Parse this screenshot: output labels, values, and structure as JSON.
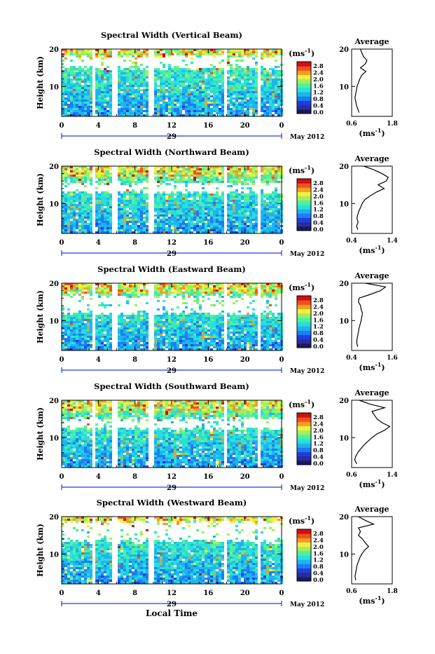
{
  "figure": {
    "xlabel": "Local Time",
    "colorbar_unit": "(ms",
    "colorbar_unit_exp": "-1",
    "colorbar_unit_close": ")",
    "ylabel": "Height (km)",
    "date_day": "29",
    "date_month_year": "May 2012",
    "avg_title": "Average",
    "avg_xlabel": "(ms",
    "avg_xlabel_exp": "-1",
    "avg_xlabel_close": ")",
    "colors": {
      "background": "#ffffff",
      "colormap": [
        "#1a1a5e",
        "#2d2d9a",
        "#1e3ee0",
        "#1e7df0",
        "#1fb4f0",
        "#28e0d8",
        "#50f0a0",
        "#a0f060",
        "#f0f040",
        "#f0a020",
        "#f05020",
        "#d01010"
      ]
    }
  },
  "chart_data": [
    {
      "type": "heatmap",
      "title": "Spectral Width (Vertical Beam)",
      "xticks": [
        "0",
        "4",
        "8",
        "12",
        "16",
        "20",
        "0"
      ],
      "yticks": [
        "20",
        "10"
      ],
      "xlim": [
        0,
        24
      ],
      "ylim": [
        2,
        20
      ],
      "colorbar_ticks": [
        "2.8",
        "2.4",
        "2.0",
        "1.6",
        "1.2",
        "0.8",
        "0.4",
        "0.0"
      ],
      "gaps_hours": [
        [
          3.2,
          3.6
        ],
        [
          5.2,
          5.9
        ],
        [
          9.2,
          9.8
        ],
        [
          17.6,
          17.9
        ],
        [
          21.3,
          21.7
        ]
      ],
      "void_band_km": [
        15.5,
        17.5
      ],
      "average_profile": {
        "xticks": [
          "0.6",
          "1.8"
        ],
        "xlim": [
          0.6,
          1.8
        ],
        "yticks": [
          "20",
          "10"
        ],
        "ylim": [
          2,
          20
        ],
        "height_km": [
          3,
          4,
          5,
          6,
          7,
          8,
          9,
          10,
          11,
          12,
          13,
          14,
          15,
          16,
          17,
          18,
          19,
          20
        ],
        "width": [
          0.82,
          0.78,
          0.74,
          0.72,
          0.7,
          0.72,
          0.74,
          0.76,
          0.8,
          0.84,
          0.9,
          1.02,
          0.86,
          1.0,
          1.05,
          0.95,
          0.9,
          0.86
        ]
      }
    },
    {
      "type": "heatmap",
      "title": "Spectral Width (Northward Beam)",
      "xticks": [
        "0",
        "4",
        "8",
        "12",
        "16",
        "20",
        "0"
      ],
      "yticks": [
        "20",
        "10"
      ],
      "xlim": [
        0,
        24
      ],
      "ylim": [
        2,
        20
      ],
      "colorbar_ticks": [
        "2.8",
        "2.4",
        "2.0",
        "1.6",
        "1.2",
        "0.8",
        "0.4",
        "0.0"
      ],
      "gaps_hours": [
        [
          3.2,
          3.6
        ],
        [
          5.2,
          5.9
        ],
        [
          9.2,
          9.8
        ],
        [
          17.6,
          17.9
        ],
        [
          21.3,
          21.7
        ]
      ],
      "void_band_km": [
        13.5,
        15.0
      ],
      "average_profile": {
        "xticks": [
          "0.4",
          "1.4"
        ],
        "xlim": [
          0.4,
          1.4
        ],
        "yticks": [
          "20",
          "10"
        ],
        "ylim": [
          2,
          20
        ],
        "height_km": [
          3,
          4,
          5,
          6,
          7,
          8,
          9,
          10,
          11,
          12,
          13,
          14,
          15,
          16,
          17,
          18,
          19,
          20
        ],
        "width": [
          0.55,
          0.52,
          0.56,
          0.53,
          0.55,
          0.58,
          0.62,
          0.66,
          0.72,
          0.85,
          1.0,
          1.2,
          1.05,
          1.25,
          1.3,
          1.15,
          0.95,
          0.7
        ]
      }
    },
    {
      "type": "heatmap",
      "title": "Spectral Width (Eastward Beam)",
      "xticks": [
        "0",
        "4",
        "8",
        "12",
        "16",
        "20",
        "0"
      ],
      "yticks": [
        "20",
        "10"
      ],
      "xlim": [
        0,
        24
      ],
      "ylim": [
        2,
        20
      ],
      "colorbar_ticks": [
        "2.8",
        "2.4",
        "2.0",
        "1.6",
        "1.2",
        "0.8",
        "0.4",
        "0.0"
      ],
      "gaps_hours": [
        [
          3.2,
          3.6
        ],
        [
          5.2,
          5.9
        ],
        [
          9.2,
          9.8
        ],
        [
          17.6,
          17.9
        ],
        [
          21.3,
          21.7
        ]
      ],
      "void_band_km": [
        12.5,
        16.0
      ],
      "average_profile": {
        "xticks": [
          "0.4",
          "1.6"
        ],
        "xlim": [
          0.4,
          1.6
        ],
        "yticks": [
          "20",
          "10"
        ],
        "ylim": [
          2,
          20
        ],
        "height_km": [
          3,
          4,
          5,
          6,
          7,
          8,
          9,
          10,
          11,
          12,
          13,
          14,
          15,
          16,
          17,
          18,
          19,
          20
        ],
        "width": [
          0.58,
          0.55,
          0.56,
          0.58,
          0.6,
          0.62,
          0.65,
          0.68,
          0.7,
          0.72,
          0.68,
          0.66,
          0.6,
          0.62,
          0.95,
          1.25,
          1.4,
          0.8
        ]
      }
    },
    {
      "type": "heatmap",
      "title": "Spectral Width (Southward Beam)",
      "xticks": [
        "0",
        "4",
        "8",
        "12",
        "16",
        "20",
        "0"
      ],
      "yticks": [
        "20",
        "10"
      ],
      "xlim": [
        0,
        24
      ],
      "ylim": [
        2,
        20
      ],
      "colorbar_ticks": [
        "2.8",
        "2.4",
        "2.0",
        "1.6",
        "1.2",
        "0.8",
        "0.4",
        "0.0"
      ],
      "gaps_hours": [
        [
          3.2,
          3.6
        ],
        [
          5.2,
          5.9
        ],
        [
          9.2,
          9.8
        ],
        [
          17.6,
          17.9
        ],
        [
          21.3,
          21.7
        ]
      ],
      "void_band_km": [
        13.0,
        14.5
      ],
      "average_profile": {
        "xticks": [
          "0.6",
          "1.4"
        ],
        "xlim": [
          0.6,
          1.4
        ],
        "yticks": [
          "20",
          "10"
        ],
        "ylim": [
          2,
          20
        ],
        "height_km": [
          3,
          4,
          5,
          6,
          7,
          8,
          9,
          10,
          11,
          12,
          13,
          14,
          15,
          16,
          17,
          18,
          19,
          20
        ],
        "width": [
          0.7,
          0.66,
          0.68,
          0.72,
          0.78,
          0.84,
          0.92,
          1.0,
          1.1,
          1.25,
          1.35,
          1.2,
          1.1,
          1.05,
          1.0,
          1.25,
          0.95,
          0.75
        ]
      }
    },
    {
      "type": "heatmap",
      "title": "Spectral Width (Westward Beam)",
      "xticks": [
        "0",
        "4",
        "8",
        "12",
        "16",
        "20",
        "0"
      ],
      "yticks": [
        "20",
        "10"
      ],
      "xlim": [
        0,
        24
      ],
      "ylim": [
        2,
        20
      ],
      "colorbar_ticks": [
        "2.8",
        "2.4",
        "2.0",
        "1.6",
        "1.2",
        "0.8",
        "0.4",
        "0.0"
      ],
      "gaps_hours": [
        [
          3.2,
          3.6
        ],
        [
          5.2,
          5.9
        ],
        [
          9.2,
          9.8
        ],
        [
          17.6,
          17.9
        ],
        [
          21.3,
          21.7
        ]
      ],
      "void_band_km": [
        14.0,
        18.0
      ],
      "average_profile": {
        "xticks": [
          "0.6",
          "1.8"
        ],
        "xlim": [
          0.6,
          1.8
        ],
        "yticks": [
          "20",
          "10"
        ],
        "ylim": [
          2,
          20
        ],
        "height_km": [
          3,
          4,
          5,
          6,
          7,
          8,
          9,
          10,
          11,
          12,
          13,
          14,
          15,
          16,
          17,
          18,
          19,
          20
        ],
        "width": [
          0.72,
          0.7,
          0.72,
          0.74,
          0.76,
          0.8,
          0.84,
          0.9,
          0.98,
          1.1,
          1.0,
          0.92,
          0.8,
          0.86,
          0.8,
          1.25,
          1.0,
          0.8
        ]
      }
    }
  ]
}
